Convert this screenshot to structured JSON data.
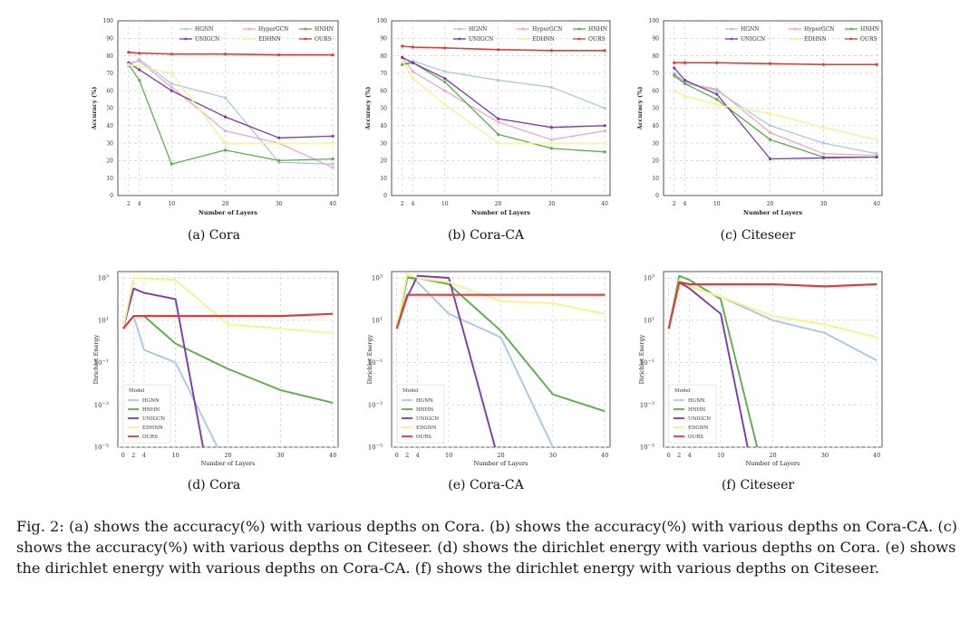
{
  "figure": {
    "caption": "Fig. 2: (a) shows the accuracy(%) with various depths on Cora. (b) shows the accuracy(%) with various depths on Cora-CA. (c) shows the accuracy(%) with various depths on Citeseer. (d) shows the dirichlet energy with various depths on Cora. (e) shows the dirichlet energy with various depths on Cora-CA. (f) shows the dirichlet energy with various depths on Citeseer."
  },
  "colors": {
    "HGNN": "#a9c8e6",
    "HyperGCN": "#f0a8c8",
    "HNHN": "#5cae4c",
    "UNIGCN": "#7d3aa8",
    "EDHNN": "#f4f48a",
    "EDGNN": "#f4f48a",
    "OURS": "#d8403a",
    "grid": "#cfcfcf",
    "axis": "#444444"
  },
  "chart_data": [
    {
      "type": "line",
      "subcaption": "(a)  Cora",
      "xlabel": "Number of Layers",
      "ylabel": "Accuracy (%)",
      "xticks": [
        2,
        4,
        10,
        20,
        30,
        40
      ],
      "yticks": [
        0,
        10,
        20,
        30,
        40,
        50,
        60,
        70,
        80,
        90,
        100
      ],
      "ylim": [
        0,
        100
      ],
      "xlim": [
        0,
        41
      ],
      "grid": true,
      "legend": "top-right, three columns",
      "series": [
        {
          "name": "HGNN",
          "x": [
            2,
            4,
            10,
            20,
            30,
            40
          ],
          "y": [
            74,
            78,
            64,
            56,
            19,
            18
          ]
        },
        {
          "name": "HyperGCN",
          "x": [
            2,
            4,
            10,
            20,
            30,
            40
          ],
          "y": [
            76,
            77,
            62,
            37,
            30,
            16
          ]
        },
        {
          "name": "HNHN",
          "x": [
            2,
            4,
            10,
            20,
            30,
            40
          ],
          "y": [
            75,
            66,
            18,
            26,
            20,
            21
          ]
        },
        {
          "name": "UNIGCN",
          "x": [
            2,
            4,
            10,
            20,
            30,
            40
          ],
          "y": [
            76,
            72,
            60,
            45,
            33,
            34
          ]
        },
        {
          "name": "EDHNN",
          "x": [
            2,
            4,
            10,
            20,
            30,
            40
          ],
          "y": [
            75,
            74,
            70,
            30,
            30,
            30
          ]
        },
        {
          "name": "OURS",
          "x": [
            2,
            4,
            10,
            20,
            30,
            40
          ],
          "y": [
            82,
            81.5,
            81,
            81,
            80.5,
            80.5
          ]
        }
      ]
    },
    {
      "type": "line",
      "subcaption": "(b)  Cora-CA",
      "xlabel": "Number of Layers",
      "ylabel": "Accuracy (%)",
      "xticks": [
        2,
        4,
        10,
        20,
        30,
        40
      ],
      "yticks": [
        0,
        10,
        20,
        30,
        40,
        50,
        60,
        70,
        80,
        90,
        100
      ],
      "ylim": [
        0,
        100
      ],
      "xlim": [
        0,
        41
      ],
      "grid": true,
      "legend": "top-right, three columns",
      "series": [
        {
          "name": "HGNN",
          "x": [
            2,
            4,
            10,
            20,
            30,
            40
          ],
          "y": [
            75,
            77,
            71,
            66,
            62,
            50
          ]
        },
        {
          "name": "HyperGCN",
          "x": [
            2,
            4,
            10,
            20,
            30,
            40
          ],
          "y": [
            79,
            71,
            60,
            42,
            32,
            37
          ]
        },
        {
          "name": "HNHN",
          "x": [
            2,
            4,
            10,
            20,
            30,
            40
          ],
          "y": [
            75,
            76,
            65,
            35,
            27,
            25
          ]
        },
        {
          "name": "UNIGCN",
          "x": [
            2,
            4,
            10,
            20,
            30,
            40
          ],
          "y": [
            79,
            76,
            67,
            44,
            39,
            40
          ]
        },
        {
          "name": "EDHNN",
          "x": [
            2,
            4,
            10,
            20,
            30,
            40
          ],
          "y": [
            77,
            67,
            52,
            30,
            30,
            30
          ]
        },
        {
          "name": "OURS",
          "x": [
            2,
            4,
            10,
            20,
            30,
            40
          ],
          "y": [
            85.5,
            85,
            84.5,
            83.5,
            83,
            83
          ]
        }
      ]
    },
    {
      "type": "line",
      "subcaption": "(c)  Citeseer",
      "xlabel": "Number of Layers",
      "ylabel": "Accuracy (%)",
      "xticks": [
        2,
        4,
        10,
        20,
        30,
        40
      ],
      "yticks": [
        0,
        10,
        20,
        30,
        40,
        50,
        60,
        70,
        80,
        90,
        100
      ],
      "ylim": [
        0,
        100
      ],
      "xlim": [
        0,
        41
      ],
      "grid": true,
      "legend": "top-right, three columns",
      "series": [
        {
          "name": "HGNN",
          "x": [
            2,
            4,
            10,
            20,
            30,
            40
          ],
          "y": [
            70,
            65,
            60,
            40,
            30,
            24
          ]
        },
        {
          "name": "HyperGCN",
          "x": [
            2,
            4,
            10,
            20,
            30,
            40
          ],
          "y": [
            68,
            64,
            61,
            36,
            24,
            23
          ]
        },
        {
          "name": "HNHN",
          "x": [
            2,
            4,
            10,
            20,
            30,
            40
          ],
          "y": [
            69,
            64,
            55,
            32,
            22,
            22
          ]
        },
        {
          "name": "UNIGCN",
          "x": [
            2,
            4,
            10,
            20,
            30,
            40
          ],
          "y": [
            73,
            66,
            58,
            21,
            21.5,
            22
          ]
        },
        {
          "name": "EDHNN",
          "x": [
            2,
            4,
            10,
            20,
            30,
            40
          ],
          "y": [
            60,
            57,
            52,
            47,
            39,
            32
          ]
        },
        {
          "name": "OURS",
          "x": [
            2,
            4,
            10,
            20,
            30,
            40
          ],
          "y": [
            76,
            76,
            76,
            75.5,
            75,
            75
          ]
        }
      ]
    },
    {
      "type": "line",
      "subcaption": "(d)  Cora",
      "xlabel": "Number of Layers",
      "ylabel": "Dirichlet Energy",
      "xticks": [
        0,
        2,
        4,
        10,
        20,
        30,
        40
      ],
      "ytick_exponents": [
        -5,
        -3,
        -1,
        1,
        3
      ],
      "yscale": "log",
      "ylim_exp": [
        -5,
        3.3
      ],
      "xlim": [
        -1,
        41
      ],
      "grid": true,
      "legend_title": "Model",
      "legend": "lower-left",
      "series": [
        {
          "name": "HGNN",
          "x": [
            0,
            2,
            4,
            10,
            20
          ],
          "y_exp": [
            0.6,
            1.2,
            -0.4,
            -1.0,
            -6.0
          ]
        },
        {
          "name": "HNHN",
          "x": [
            0,
            2,
            4,
            10,
            20,
            30,
            40
          ],
          "y_exp": [
            0.6,
            1.2,
            1.2,
            -0.1,
            -1.3,
            -2.3,
            -2.9
          ]
        },
        {
          "name": "UNIGCN",
          "x": [
            0,
            2,
            4,
            10,
            16
          ],
          "y_exp": [
            0.6,
            2.5,
            2.3,
            2.0,
            -6.0
          ]
        },
        {
          "name": "EDHNN",
          "x": [
            0,
            2,
            10,
            20,
            30,
            40
          ],
          "y_exp": [
            0.6,
            3.0,
            2.9,
            0.8,
            0.6,
            0.4
          ]
        },
        {
          "name": "OURS",
          "x": [
            0,
            2,
            4,
            10,
            20,
            30,
            40
          ],
          "y_exp": [
            0.6,
            1.2,
            1.2,
            1.2,
            1.2,
            1.2,
            1.3
          ]
        }
      ]
    },
    {
      "type": "line",
      "subcaption": "(e)  Cora-CA",
      "xlabel": "Number of Layers",
      "ylabel": "Dirichlet Energy",
      "xticks": [
        0,
        2,
        4,
        10,
        20,
        30,
        40
      ],
      "ytick_exponents": [
        -5,
        -3,
        -1,
        1,
        3
      ],
      "yscale": "log",
      "ylim_exp": [
        -5,
        3.3
      ],
      "xlim": [
        -1,
        41
      ],
      "grid": true,
      "legend_title": "Model",
      "legend": "lower-left",
      "series": [
        {
          "name": "HGNN",
          "x": [
            0,
            2,
            4,
            10,
            20,
            30
          ],
          "y_exp": [
            0.6,
            3.1,
            2.8,
            1.3,
            0.2,
            -5.0
          ]
        },
        {
          "name": "HNHN",
          "x": [
            0,
            2,
            4,
            10,
            20,
            30,
            40
          ],
          "y_exp": [
            0.6,
            3.0,
            3.0,
            2.7,
            0.5,
            -2.5,
            -3.3
          ]
        },
        {
          "name": "UNIGCN",
          "x": [
            0,
            2,
            4,
            10,
            20
          ],
          "y_exp": [
            0.6,
            2.1,
            3.1,
            3.0,
            -6.0
          ]
        },
        {
          "name": "EDGNN",
          "x": [
            0,
            2,
            4,
            10,
            20,
            30,
            40
          ],
          "y_exp": [
            0.6,
            3.2,
            3.0,
            2.8,
            1.9,
            1.8,
            1.3
          ]
        },
        {
          "name": "OURS",
          "x": [
            0,
            2,
            4,
            10,
            20,
            30,
            40
          ],
          "y_exp": [
            0.6,
            2.2,
            2.2,
            2.2,
            2.2,
            2.2,
            2.2
          ]
        }
      ]
    },
    {
      "type": "line",
      "subcaption": "(f)  Citeseer",
      "xlabel": "Number of Layers",
      "ylabel": "Dirichlet Energy",
      "xticks": [
        0,
        2,
        4,
        10,
        20,
        30,
        40
      ],
      "ytick_exponents": [
        -5,
        -3,
        -1,
        1,
        3
      ],
      "yscale": "log",
      "ylim_exp": [
        -5,
        3.3
      ],
      "xlim": [
        -1,
        41
      ],
      "grid": true,
      "legend_title": "Model",
      "legend": "lower-left",
      "series": [
        {
          "name": "HGNN",
          "x": [
            0,
            2,
            4,
            10,
            20,
            30,
            40
          ],
          "y_exp": [
            0.6,
            2.7,
            2.6,
            2.1,
            1.0,
            0.4,
            -0.9
          ]
        },
        {
          "name": "HNHN",
          "x": [
            0,
            2,
            4,
            10,
            18
          ],
          "y_exp": [
            0.6,
            3.1,
            2.9,
            2.0,
            -6.0
          ]
        },
        {
          "name": "UNIGCN",
          "x": [
            0,
            2,
            4,
            10,
            16
          ],
          "y_exp": [
            0.6,
            2.8,
            2.5,
            1.3,
            -6.0
          ]
        },
        {
          "name": "EDGNN",
          "x": [
            0,
            2,
            4,
            10,
            20,
            30,
            40
          ],
          "y_exp": [
            0.6,
            2.9,
            2.6,
            2.1,
            1.2,
            0.8,
            0.2
          ]
        },
        {
          "name": "OURS",
          "x": [
            0,
            2,
            4,
            10,
            20,
            30,
            40
          ],
          "y_exp": [
            0.6,
            2.8,
            2.7,
            2.7,
            2.7,
            2.6,
            2.7
          ]
        }
      ]
    }
  ]
}
